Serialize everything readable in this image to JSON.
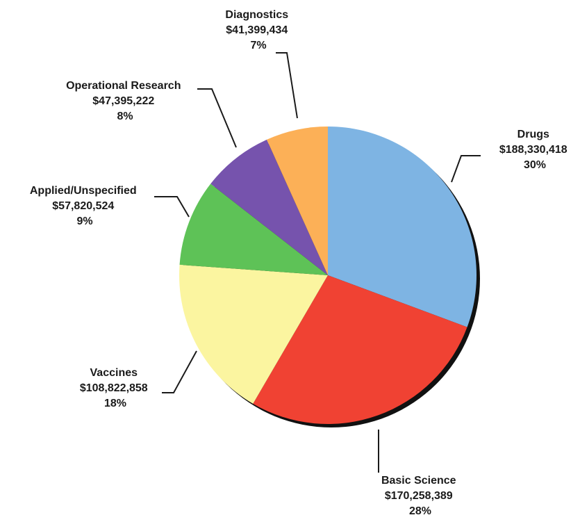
{
  "chart_data": {
    "type": "pie",
    "title": "",
    "slices": [
      {
        "name": "Drugs",
        "amount": "$188,330,418",
        "percent": "30%",
        "value": 188330418,
        "color": "#7eb4e3"
      },
      {
        "name": "Basic Science",
        "amount": "$170,258,389",
        "percent": "28%",
        "value": 170258389,
        "color": "#f04233"
      },
      {
        "name": "Vaccines",
        "amount": "$108,822,858",
        "percent": "18%",
        "value": 108822858,
        "color": "#fbf5a0"
      },
      {
        "name": "Applied/Unspecified",
        "amount": "$57,820,524",
        "percent": "9%",
        "value": 57820524,
        "color": "#5ec257"
      },
      {
        "name": "Operational Research",
        "amount": "$47,395,222",
        "percent": "8%",
        "value": 47395222,
        "color": "#7653ad"
      },
      {
        "name": "Diagnostics",
        "amount": "$41,399,434",
        "percent": "7%",
        "value": 41399434,
        "color": "#fcb057"
      }
    ]
  }
}
